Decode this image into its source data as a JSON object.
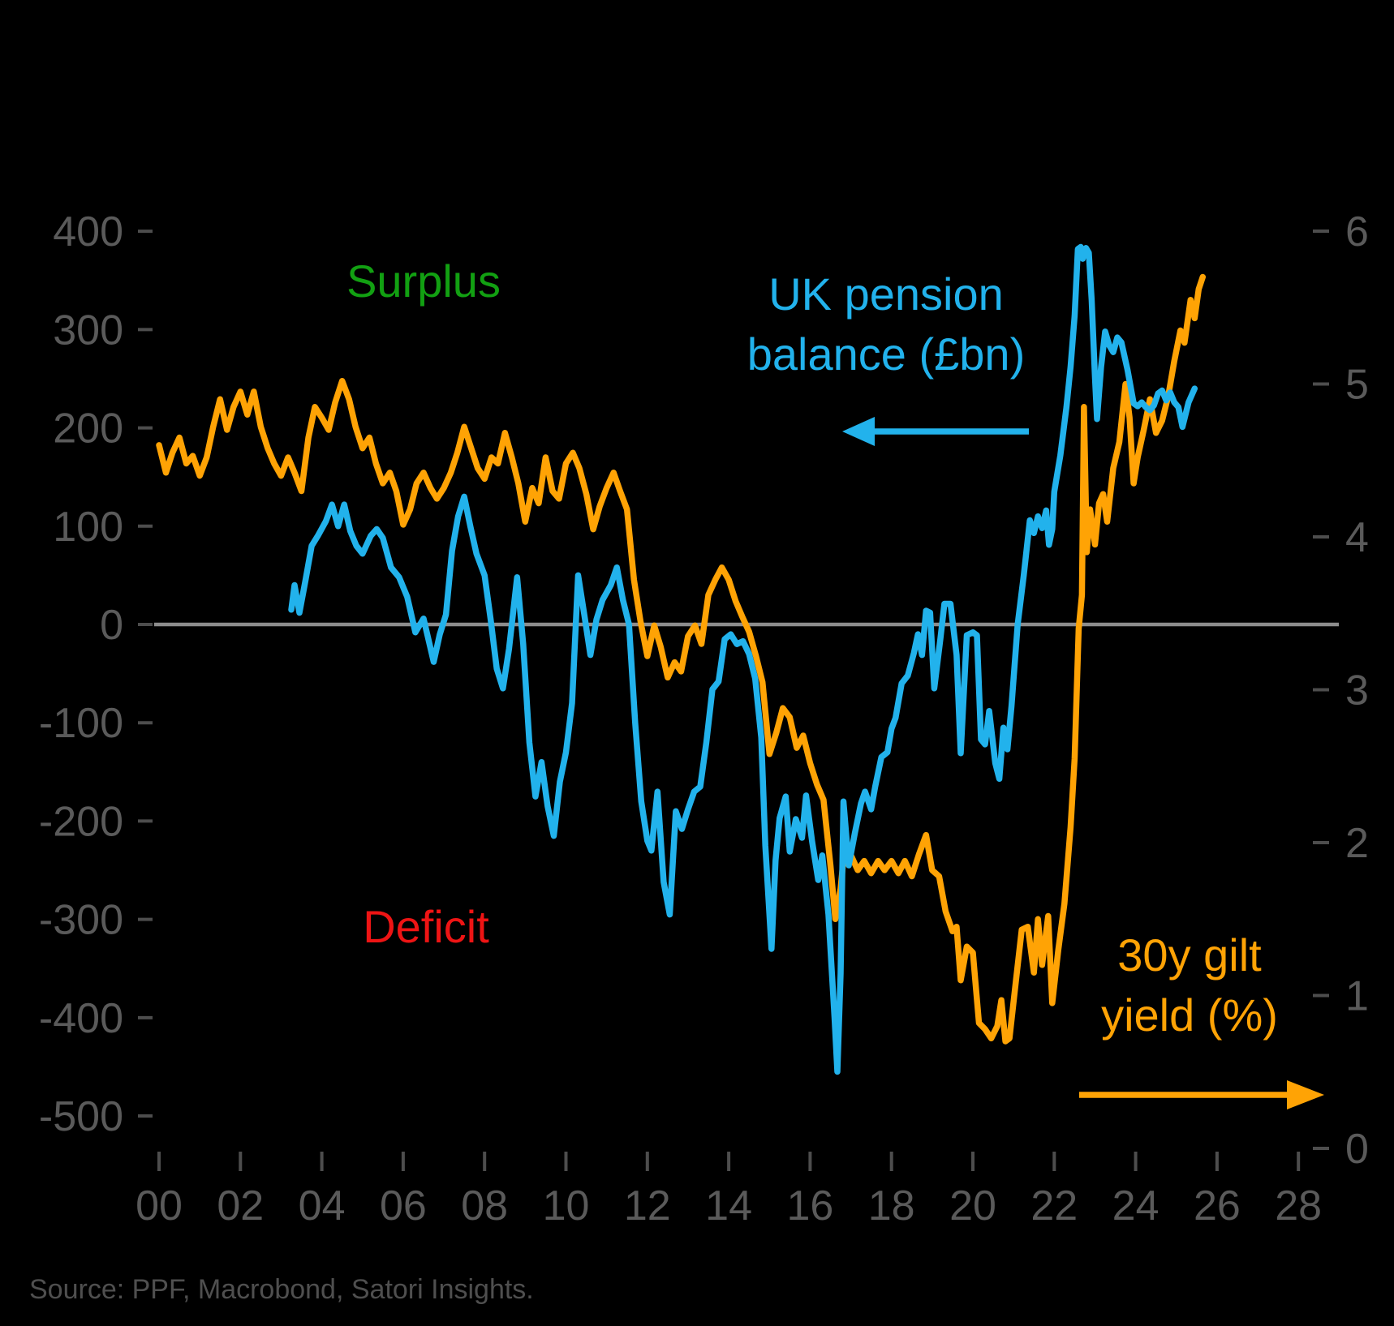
{
  "annotations": {
    "surplus_label": "Surplus",
    "deficit_label": "Deficit",
    "pension_label_line1": "UK pension",
    "pension_label_line2": "balance (£bn)",
    "gilt_label_line1": "30y gilt",
    "gilt_label_line2": "yield (%)"
  },
  "source": "Source: PPF, Macrobond, Satori Insights.",
  "colors": {
    "background": "#000000",
    "blue": "#22B2EC",
    "orange": "#FFA305",
    "green": "#12A012",
    "red": "#EE1414",
    "axis_text": "#5A5A5A",
    "tick": "#4D4D4D",
    "zero_line": "#8C8C8C",
    "source_text": "#4F4F4F"
  },
  "chart_data": {
    "type": "line",
    "title": "",
    "xlabel": "",
    "x_axis": {
      "range_years": [
        "2000",
        "2028"
      ],
      "tick_years": [
        0,
        2,
        4,
        6,
        8,
        10,
        12,
        14,
        16,
        18,
        20,
        22,
        24,
        26,
        28
      ],
      "tick_labels": [
        "00",
        "02",
        "04",
        "06",
        "08",
        "10",
        "12",
        "14",
        "16",
        "18",
        "20",
        "22",
        "24",
        "26",
        "28"
      ]
    },
    "left_axis": {
      "label": "UK pension balance (£bn)",
      "ticks": [
        400,
        300,
        200,
        100,
        0,
        -100,
        -200,
        -300,
        -400,
        -500
      ],
      "range": [
        -500,
        400
      ],
      "zero_gridline": true
    },
    "right_axis": {
      "label": "30y gilt yield (%)",
      "ticks": [
        6,
        5,
        4,
        3,
        2,
        1,
        0
      ],
      "range": [
        0,
        6
      ]
    },
    "legend_position": "annotated-on-chart",
    "grid": false,
    "series": [
      {
        "name": "30y gilt yield (%)",
        "axis": "right",
        "color": "#FFA305",
        "x": [
          0.0,
          0.17,
          0.33,
          0.5,
          0.67,
          0.83,
          1.0,
          1.17,
          1.33,
          1.5,
          1.67,
          1.83,
          2.0,
          2.17,
          2.33,
          2.5,
          2.67,
          2.83,
          3.0,
          3.17,
          3.33,
          3.5,
          3.67,
          3.83,
          4.0,
          4.17,
          4.33,
          4.5,
          4.67,
          4.83,
          5.0,
          5.17,
          5.33,
          5.5,
          5.67,
          5.83,
          6.0,
          6.17,
          6.33,
          6.5,
          6.67,
          6.83,
          7.0,
          7.17,
          7.33,
          7.5,
          7.67,
          7.83,
          8.0,
          8.17,
          8.33,
          8.5,
          8.67,
          8.83,
          9.0,
          9.17,
          9.33,
          9.5,
          9.67,
          9.83,
          10.0,
          10.17,
          10.33,
          10.5,
          10.67,
          10.83,
          11.0,
          11.17,
          11.33,
          11.5,
          11.67,
          11.83,
          12.0,
          12.17,
          12.33,
          12.5,
          12.67,
          12.83,
          13.0,
          13.17,
          13.33,
          13.5,
          13.67,
          13.83,
          14.0,
          14.17,
          14.33,
          14.5,
          14.67,
          14.83,
          15.0,
          15.17,
          15.33,
          15.5,
          15.67,
          15.83,
          16.0,
          16.17,
          16.33,
          16.5,
          16.62,
          16.75,
          16.83,
          17.0,
          17.17,
          17.33,
          17.5,
          17.67,
          17.83,
          18.0,
          18.17,
          18.33,
          18.5,
          18.67,
          18.85,
          19.0,
          19.17,
          19.33,
          19.5,
          19.6,
          19.7,
          19.85,
          20.0,
          20.15,
          20.3,
          20.45,
          20.6,
          20.7,
          20.8,
          20.9,
          21.05,
          21.2,
          21.35,
          21.5,
          21.6,
          21.7,
          21.85,
          21.95,
          22.1,
          22.25,
          22.4,
          22.5,
          22.6,
          22.68,
          22.73,
          22.8,
          22.88,
          23.0,
          23.1,
          23.2,
          23.3,
          23.45,
          23.6,
          23.75,
          23.85,
          23.95,
          24.05,
          24.2,
          24.35,
          24.5,
          24.65,
          24.8,
          24.95,
          25.1,
          25.2,
          25.35,
          25.45,
          25.55,
          25.65
        ],
        "values": [
          4.6,
          4.42,
          4.55,
          4.65,
          4.48,
          4.53,
          4.4,
          4.52,
          4.72,
          4.9,
          4.7,
          4.85,
          4.95,
          4.8,
          4.95,
          4.72,
          4.58,
          4.48,
          4.4,
          4.52,
          4.42,
          4.3,
          4.65,
          4.85,
          4.78,
          4.7,
          4.88,
          5.02,
          4.9,
          4.72,
          4.58,
          4.65,
          4.48,
          4.35,
          4.42,
          4.3,
          4.08,
          4.18,
          4.35,
          4.42,
          4.32,
          4.25,
          4.32,
          4.42,
          4.55,
          4.72,
          4.58,
          4.45,
          4.38,
          4.52,
          4.48,
          4.68,
          4.52,
          4.35,
          4.1,
          4.32,
          4.22,
          4.52,
          4.3,
          4.25,
          4.48,
          4.55,
          4.45,
          4.28,
          4.05,
          4.2,
          4.32,
          4.42,
          4.3,
          4.18,
          3.72,
          3.45,
          3.22,
          3.42,
          3.28,
          3.08,
          3.18,
          3.12,
          3.35,
          3.42,
          3.3,
          3.62,
          3.72,
          3.8,
          3.72,
          3.58,
          3.48,
          3.38,
          3.22,
          3.05,
          2.58,
          2.72,
          2.88,
          2.82,
          2.62,
          2.7,
          2.52,
          2.38,
          2.28,
          1.85,
          1.5,
          1.7,
          1.92,
          1.92,
          1.82,
          1.88,
          1.8,
          1.88,
          1.82,
          1.88,
          1.8,
          1.88,
          1.78,
          1.92,
          2.05,
          1.82,
          1.78,
          1.55,
          1.42,
          1.45,
          1.1,
          1.32,
          1.28,
          0.82,
          0.78,
          0.72,
          0.8,
          0.97,
          0.7,
          0.72,
          1.08,
          1.43,
          1.45,
          1.15,
          1.5,
          1.2,
          1.52,
          0.95,
          1.3,
          1.6,
          2.1,
          2.55,
          3.4,
          3.62,
          4.85,
          3.9,
          4.18,
          3.95,
          4.22,
          4.28,
          4.1,
          4.45,
          4.62,
          5.0,
          4.78,
          4.35,
          4.52,
          4.7,
          4.9,
          4.68,
          4.76,
          4.92,
          5.15,
          5.35,
          5.27,
          5.55,
          5.43,
          5.62,
          5.7
        ]
      },
      {
        "name": "UK pension balance (£bn)",
        "axis": "left",
        "color": "#22B2EC",
        "x": [
          3.25,
          3.33,
          3.45,
          3.6,
          3.75,
          3.9,
          4.1,
          4.25,
          4.4,
          4.55,
          4.7,
          4.85,
          5.0,
          5.2,
          5.35,
          5.5,
          5.7,
          5.9,
          6.1,
          6.3,
          6.5,
          6.75,
          6.9,
          7.05,
          7.2,
          7.35,
          7.5,
          7.65,
          7.8,
          8.0,
          8.15,
          8.3,
          8.45,
          8.6,
          8.8,
          8.95,
          9.1,
          9.25,
          9.4,
          9.55,
          9.7,
          9.85,
          10.0,
          10.15,
          10.3,
          10.45,
          10.6,
          10.75,
          10.9,
          11.1,
          11.25,
          11.4,
          11.55,
          11.7,
          11.85,
          12.0,
          12.1,
          12.25,
          12.4,
          12.55,
          12.7,
          12.85,
          13.0,
          13.15,
          13.3,
          13.45,
          13.6,
          13.75,
          13.9,
          14.05,
          14.2,
          14.35,
          14.5,
          14.65,
          14.8,
          14.9,
          15.05,
          15.15,
          15.25,
          15.4,
          15.5,
          15.65,
          15.8,
          15.9,
          16.05,
          16.2,
          16.3,
          16.45,
          16.6,
          16.67,
          16.75,
          16.82,
          16.95,
          17.1,
          17.25,
          17.35,
          17.5,
          17.6,
          17.75,
          17.9,
          18.0,
          18.1,
          18.25,
          18.4,
          18.55,
          18.65,
          18.75,
          18.85,
          18.95,
          19.05,
          19.2,
          19.3,
          19.45,
          19.6,
          19.7,
          19.85,
          20.0,
          20.1,
          20.2,
          20.3,
          20.4,
          20.55,
          20.65,
          20.75,
          20.85,
          20.95,
          21.1,
          21.25,
          21.4,
          21.5,
          21.6,
          21.7,
          21.8,
          21.87,
          21.95,
          22.0,
          22.15,
          22.3,
          22.4,
          22.5,
          22.58,
          22.65,
          22.7,
          22.78,
          22.85,
          22.92,
          23.0,
          23.05,
          23.15,
          23.25,
          23.35,
          23.45,
          23.55,
          23.65,
          23.8,
          23.95,
          24.05,
          24.15,
          24.25,
          24.35,
          24.45,
          24.55,
          24.65,
          24.75,
          24.85,
          24.95,
          25.05,
          25.15,
          25.3,
          25.45
        ],
        "values": [
          15,
          40,
          12,
          45,
          80,
          90,
          105,
          122,
          100,
          122,
          95,
          80,
          72,
          90,
          97,
          88,
          58,
          48,
          28,
          -8,
          6,
          -38,
          -10,
          10,
          75,
          110,
          130,
          100,
          72,
          50,
          5,
          -45,
          -65,
          -25,
          48,
          -20,
          -120,
          -175,
          -140,
          -185,
          -215,
          -160,
          -130,
          -80,
          50,
          10,
          -31,
          5,
          25,
          40,
          58,
          25,
          0,
          -100,
          -180,
          -220,
          -230,
          -170,
          -262,
          -295,
          -190,
          -208,
          -188,
          -170,
          -165,
          -120,
          -66,
          -58,
          -15,
          -10,
          -20,
          -17,
          -30,
          -55,
          -115,
          -225,
          -330,
          -240,
          -197,
          -175,
          -231,
          -198,
          -217,
          -174,
          -221,
          -260,
          -235,
          -295,
          -400,
          -455,
          -355,
          -180,
          -245,
          -212,
          -182,
          -170,
          -188,
          -165,
          -135,
          -130,
          -106,
          -95,
          -60,
          -52,
          -29,
          -10,
          -31,
          14,
          12,
          -65,
          -15,
          21,
          21,
          -31,
          -131,
          -11,
          -8,
          -11,
          -117,
          -122,
          -88,
          -141,
          -157,
          -105,
          -127,
          -83,
          0,
          50,
          106,
          93,
          110,
          98,
          116,
          81,
          97,
          135,
          172,
          221,
          262,
          314,
          382,
          384,
          372,
          383,
          378,
          330,
          251,
          209,
          262,
          298,
          284,
          277,
          292,
          287,
          259,
          225,
          222,
          226,
          221,
          218,
          223,
          235,
          238,
          228,
          236,
          226,
          221,
          201,
          226,
          240
        ]
      }
    ]
  }
}
